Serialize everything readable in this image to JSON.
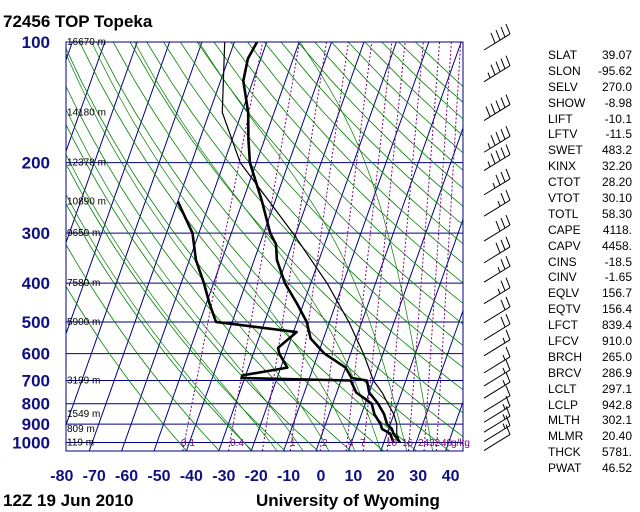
{
  "header": {
    "title": "72456 TOP Topeka"
  },
  "footer": {
    "left": "12Z 19 Jun 2010",
    "right": "University of Wyoming"
  },
  "chart_data": {
    "type": "line",
    "title": "72456 TOP Topeka",
    "y_axis": {
      "label": "",
      "scale": "log-pressure",
      "ticks": [
        100,
        200,
        300,
        400,
        500,
        600,
        700,
        800,
        900,
        1000
      ],
      "range_hpa": [
        1050,
        100
      ]
    },
    "x_axis": {
      "label": "",
      "ticks": [
        -80,
        -70,
        -60,
        -50,
        -40,
        -30,
        -20,
        -10,
        0,
        10,
        20,
        30,
        40
      ]
    },
    "height_labels": [
      {
        "p": 100,
        "text": "16670 m"
      },
      {
        "p": 150,
        "text": "14180 m"
      },
      {
        "p": 200,
        "text": "12378 m"
      },
      {
        "p": 250,
        "text": "10890 m"
      },
      {
        "p": 300,
        "text": "9650 m"
      },
      {
        "p": 400,
        "text": "7580 m"
      },
      {
        "p": 500,
        "text": "5900 m"
      },
      {
        "p": 700,
        "text": "3199 m"
      },
      {
        "p": 850,
        "text": "1549 m"
      },
      {
        "p": 925,
        "text": "809 m"
      },
      {
        "p": 1000,
        "text": "119 m"
      }
    ],
    "mixing_ratio_labels": [
      "0.1",
      "0.4",
      "1",
      "2",
      "4",
      "7",
      "10",
      "16",
      "24",
      "32",
      "40",
      "g/kg"
    ],
    "mixing_ratio_values": [
      0.1,
      0.4,
      1,
      2,
      4,
      7,
      10,
      16,
      24,
      32,
      40
    ],
    "series": [
      {
        "name": "",
        "color": "#000000",
        "points": [
          [
            100,
            -63
          ],
          [
            110,
            -64
          ],
          [
            125,
            -63
          ],
          [
            150,
            -58
          ],
          [
            175,
            -55
          ],
          [
            200,
            -52
          ],
          [
            250,
            -44
          ],
          [
            300,
            -38
          ],
          [
            320,
            -35
          ],
          [
            350,
            -33
          ],
          [
            400,
            -28
          ],
          [
            450,
            -22
          ],
          [
            500,
            -17
          ],
          [
            550,
            -14
          ],
          [
            600,
            -8
          ],
          [
            650,
            0
          ],
          [
            690,
            3
          ],
          [
            700,
            8
          ],
          [
            750,
            10
          ],
          [
            800,
            14
          ],
          [
            850,
            17
          ],
          [
            900,
            19
          ],
          [
            925,
            21
          ],
          [
            950,
            22
          ],
          [
            1000,
            25
          ]
        ]
      },
      {
        "name": "",
        "color": "#000000",
        "points": [
          [
            250,
            -70
          ],
          [
            300,
            -62
          ],
          [
            350,
            -58
          ],
          [
            400,
            -53
          ],
          [
            450,
            -49
          ],
          [
            500,
            -45
          ],
          [
            530,
            -19
          ],
          [
            580,
            -23
          ],
          [
            600,
            -22
          ],
          [
            650,
            -18
          ],
          [
            680,
            -31
          ],
          [
            690,
            -31
          ],
          [
            700,
            3
          ],
          [
            750,
            6
          ],
          [
            800,
            12
          ],
          [
            850,
            14
          ],
          [
            900,
            17
          ],
          [
            925,
            18
          ],
          [
            950,
            21
          ],
          [
            1000,
            23
          ]
        ]
      },
      {
        "name": "",
        "color": "#000000",
        "points": [
          [
            1000,
            25
          ],
          [
            950,
            23
          ],
          [
            900,
            22
          ],
          [
            850,
            20
          ],
          [
            800,
            17
          ],
          [
            750,
            14
          ],
          [
            700,
            10
          ],
          [
            600,
            4
          ],
          [
            500,
            -4
          ],
          [
            400,
            -15
          ],
          [
            300,
            -31
          ],
          [
            200,
            -55
          ],
          [
            150,
            -66
          ],
          [
            100,
            -73
          ]
        ]
      }
    ],
    "wind_barbs": [
      {
        "p": 100,
        "spd": 40
      },
      {
        "p": 120,
        "spd": 45
      },
      {
        "p": 150,
        "spd": 50
      },
      {
        "p": 180,
        "spd": 45
      },
      {
        "p": 200,
        "spd": 45
      },
      {
        "p": 230,
        "spd": 35
      },
      {
        "p": 260,
        "spd": 25
      },
      {
        "p": 300,
        "spd": 30
      },
      {
        "p": 340,
        "spd": 30
      },
      {
        "p": 380,
        "spd": 25
      },
      {
        "p": 430,
        "spd": 25
      },
      {
        "p": 480,
        "spd": 20
      },
      {
        "p": 530,
        "spd": 20
      },
      {
        "p": 580,
        "spd": 15
      },
      {
        "p": 640,
        "spd": 15
      },
      {
        "p": 690,
        "spd": 15
      },
      {
        "p": 740,
        "spd": 15
      },
      {
        "p": 800,
        "spd": 10
      },
      {
        "p": 850,
        "spd": 15
      },
      {
        "p": 900,
        "spd": 15
      },
      {
        "p": 950,
        "spd": 15
      },
      {
        "p": 1000,
        "spd": 10
      }
    ],
    "indices": [
      {
        "name": "SLAT",
        "value": "39.07"
      },
      {
        "name": "SLON",
        "value": "-95.62"
      },
      {
        "name": "SELV",
        "value": "270.0"
      },
      {
        "name": "SHOW",
        "value": "-8.98"
      },
      {
        "name": "LIFT",
        "value": "-10.1"
      },
      {
        "name": "LFTV",
        "value": "-11.5"
      },
      {
        "name": "SWET",
        "value": "483.2"
      },
      {
        "name": "KINX",
        "value": "32.20"
      },
      {
        "name": "CTOT",
        "value": "28.20"
      },
      {
        "name": "VTOT",
        "value": "30.10"
      },
      {
        "name": "TOTL",
        "value": "58.30"
      },
      {
        "name": "CAPE",
        "value": "4118."
      },
      {
        "name": "CAPV",
        "value": "4458."
      },
      {
        "name": "CINS",
        "value": "-18.5"
      },
      {
        "name": "CINV",
        "value": "-1.65"
      },
      {
        "name": "EQLV",
        "value": "156.7"
      },
      {
        "name": "EQTV",
        "value": "156.4"
      },
      {
        "name": "LFCT",
        "value": "839.4"
      },
      {
        "name": "LFCV",
        "value": "910.0"
      },
      {
        "name": "BRCH",
        "value": "265.0"
      },
      {
        "name": "BRCV",
        "value": "286.9"
      },
      {
        "name": "LCLT",
        "value": "297.1"
      },
      {
        "name": "LCLP",
        "value": "942.8"
      },
      {
        "name": "MLTH",
        "value": "302.1"
      },
      {
        "name": "MLMR",
        "value": "20.40"
      },
      {
        "name": "THCK",
        "value": "5781."
      },
      {
        "name": "PWAT",
        "value": "46.52"
      }
    ]
  }
}
